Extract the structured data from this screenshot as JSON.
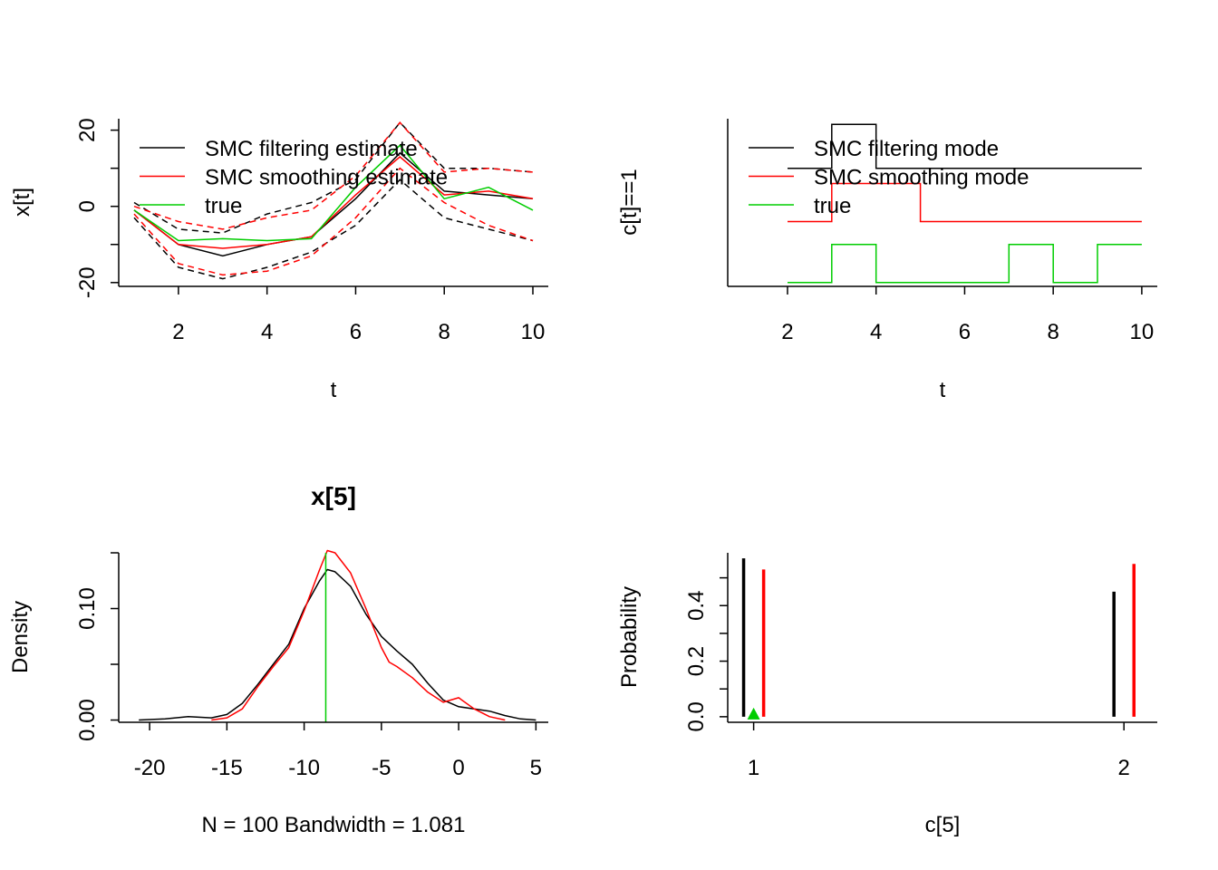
{
  "chart_data": [
    {
      "type": "line",
      "title": "",
      "xlabel": "t",
      "ylabel": "x[t]",
      "xlim": [
        1,
        10
      ],
      "ylim": [
        -21,
        23
      ],
      "x_ticks": [
        2,
        4,
        6,
        8,
        10
      ],
      "y_ticks": [
        -20,
        -10,
        0,
        10,
        20
      ],
      "y_tick_labels": [
        "-20",
        "",
        "0",
        "",
        "20"
      ],
      "legend_position": "top-left",
      "legend": [
        {
          "label": "SMC filtering estimate",
          "color": "#000000"
        },
        {
          "label": "SMC smoothing estimate",
          "color": "#ff0000"
        },
        {
          "label": "true",
          "color": "#00cd00"
        }
      ],
      "x": [
        1,
        2,
        3,
        4,
        5,
        6,
        7,
        8,
        9,
        10
      ],
      "series": [
        {
          "role": "filtering",
          "color": "#000000",
          "dash": false,
          "values": [
            -1,
            -10,
            -13,
            -10,
            -8,
            2,
            14,
            4,
            3,
            2
          ]
        },
        {
          "role": "filtering-upper",
          "color": "#000000",
          "dash": true,
          "values": [
            1,
            -6,
            -7,
            -2,
            1,
            7,
            22,
            10,
            10,
            9
          ]
        },
        {
          "role": "filtering-lower",
          "color": "#000000",
          "dash": true,
          "values": [
            -3,
            -16,
            -19,
            -16,
            -12,
            -5,
            7,
            -3,
            -6,
            -9
          ]
        },
        {
          "role": "smoothing",
          "color": "#ff0000",
          "dash": false,
          "values": [
            -1,
            -10,
            -11,
            -10,
            -8,
            3,
            13,
            3,
            4,
            2
          ]
        },
        {
          "role": "smoothing-upper",
          "color": "#ff0000",
          "dash": true,
          "values": [
            0,
            -4,
            -6,
            -3,
            -1,
            8,
            22,
            9,
            10,
            9
          ]
        },
        {
          "role": "smoothing-lower",
          "color": "#ff0000",
          "dash": true,
          "values": [
            -2,
            -15,
            -18,
            -17,
            -13,
            -3,
            10,
            1,
            -5,
            -9
          ]
        },
        {
          "role": "true",
          "color": "#00cd00",
          "dash": false,
          "values": [
            -1,
            -9,
            -8.5,
            -9,
            -8.5,
            5,
            16,
            2,
            5,
            -1
          ]
        }
      ]
    },
    {
      "type": "line",
      "title": "",
      "xlabel": "t",
      "ylabel": "c[t]==1",
      "xlim": [
        0.65,
        10.35
      ],
      "ylim": [
        -0.1,
        4.3
      ],
      "x_ticks": [
        2,
        4,
        6,
        8,
        10
      ],
      "legend_position": "top-left",
      "legend": [
        {
          "label": "SMC filtering mode",
          "color": "#000000"
        },
        {
          "label": "SMC smoothing mode",
          "color": "#ff0000"
        },
        {
          "label": "true",
          "color": "#00cd00"
        }
      ],
      "x": [
        2,
        3,
        4,
        5,
        6,
        7,
        8,
        9,
        10
      ],
      "step_series": [
        {
          "role": "filtering-mode",
          "color": "#000000",
          "low": 3,
          "high": 4.15,
          "values": [
            0,
            1,
            0,
            0,
            0,
            0,
            0,
            0,
            0
          ]
        },
        {
          "role": "smoothing-mode",
          "color": "#ff0000",
          "low": 1.6,
          "high": 2.6,
          "values": [
            0,
            1,
            1,
            0,
            0,
            0,
            0,
            0,
            0
          ]
        },
        {
          "role": "true",
          "color": "#00cd00",
          "low": 0,
          "high": 1,
          "values": [
            0,
            1,
            0,
            0,
            0,
            1,
            0,
            1,
            1
          ]
        }
      ]
    },
    {
      "type": "line",
      "title": "x[5]",
      "xlabel": "N = 100   Bandwidth = 1.081",
      "ylabel": "Density",
      "xlim": [
        -22,
        5.8
      ],
      "ylim": [
        -0.002,
        0.15
      ],
      "x_ticks": [
        -20,
        -15,
        -10,
        -5,
        0,
        5
      ],
      "y_ticks": [
        0,
        0.05,
        0.1,
        0.15
      ],
      "y_tick_labels": [
        "0.00",
        "",
        "0.10",
        ""
      ],
      "true_value": -8.6,
      "series": [
        {
          "role": "filtering-density",
          "color": "#000000",
          "x": [
            -20.7,
            -19,
            -17.5,
            -16,
            -15,
            -14,
            -13,
            -12,
            -11,
            -10,
            -9,
            -8.5,
            -8,
            -7,
            -6,
            -5,
            -4,
            -3,
            -2,
            -1,
            0,
            1,
            2,
            3,
            4,
            5
          ],
          "values": [
            0,
            0.001,
            0.003,
            0.002,
            0.005,
            0.015,
            0.032,
            0.05,
            0.068,
            0.1,
            0.125,
            0.135,
            0.133,
            0.12,
            0.095,
            0.075,
            0.062,
            0.05,
            0.033,
            0.018,
            0.012,
            0.01,
            0.008,
            0.004,
            0.001,
            0
          ]
        },
        {
          "role": "smoothing-density",
          "color": "#ff0000",
          "x": [
            -16,
            -15,
            -14,
            -13,
            -12,
            -11,
            -10,
            -9,
            -8.5,
            -8,
            -7,
            -6,
            -5,
            -4.5,
            -4,
            -3,
            -2,
            -1,
            0,
            1,
            2,
            3
          ],
          "values": [
            0,
            0.002,
            0.01,
            0.03,
            0.048,
            0.065,
            0.098,
            0.135,
            0.152,
            0.15,
            0.132,
            0.1,
            0.065,
            0.052,
            0.048,
            0.038,
            0.025,
            0.016,
            0.02,
            0.01,
            0.003,
            0
          ]
        }
      ]
    },
    {
      "type": "bar",
      "title": "",
      "xlabel": "c[5]",
      "ylabel": "Probability",
      "xlim": [
        0.93,
        2.09
      ],
      "ylim": [
        -0.02,
        0.59
      ],
      "x_ticks": [
        1,
        2
      ],
      "y_ticks": [
        0,
        0.1,
        0.2,
        0.3,
        0.4,
        0.5
      ],
      "y_tick_labels": [
        "0.0",
        "",
        "0.2",
        "",
        "0.4",
        ""
      ],
      "bars": [
        {
          "role": "filtering",
          "x": 0.973,
          "value": 0.57,
          "color": "#000000"
        },
        {
          "role": "smoothing",
          "x": 1.027,
          "value": 0.53,
          "color": "#ff0000"
        },
        {
          "role": "filtering",
          "x": 1.973,
          "value": 0.45,
          "color": "#000000"
        },
        {
          "role": "smoothing",
          "x": 2.027,
          "value": 0.55,
          "color": "#ff0000"
        }
      ],
      "true_marker": {
        "x": 1,
        "value": 0,
        "color": "#00cd00"
      }
    }
  ]
}
